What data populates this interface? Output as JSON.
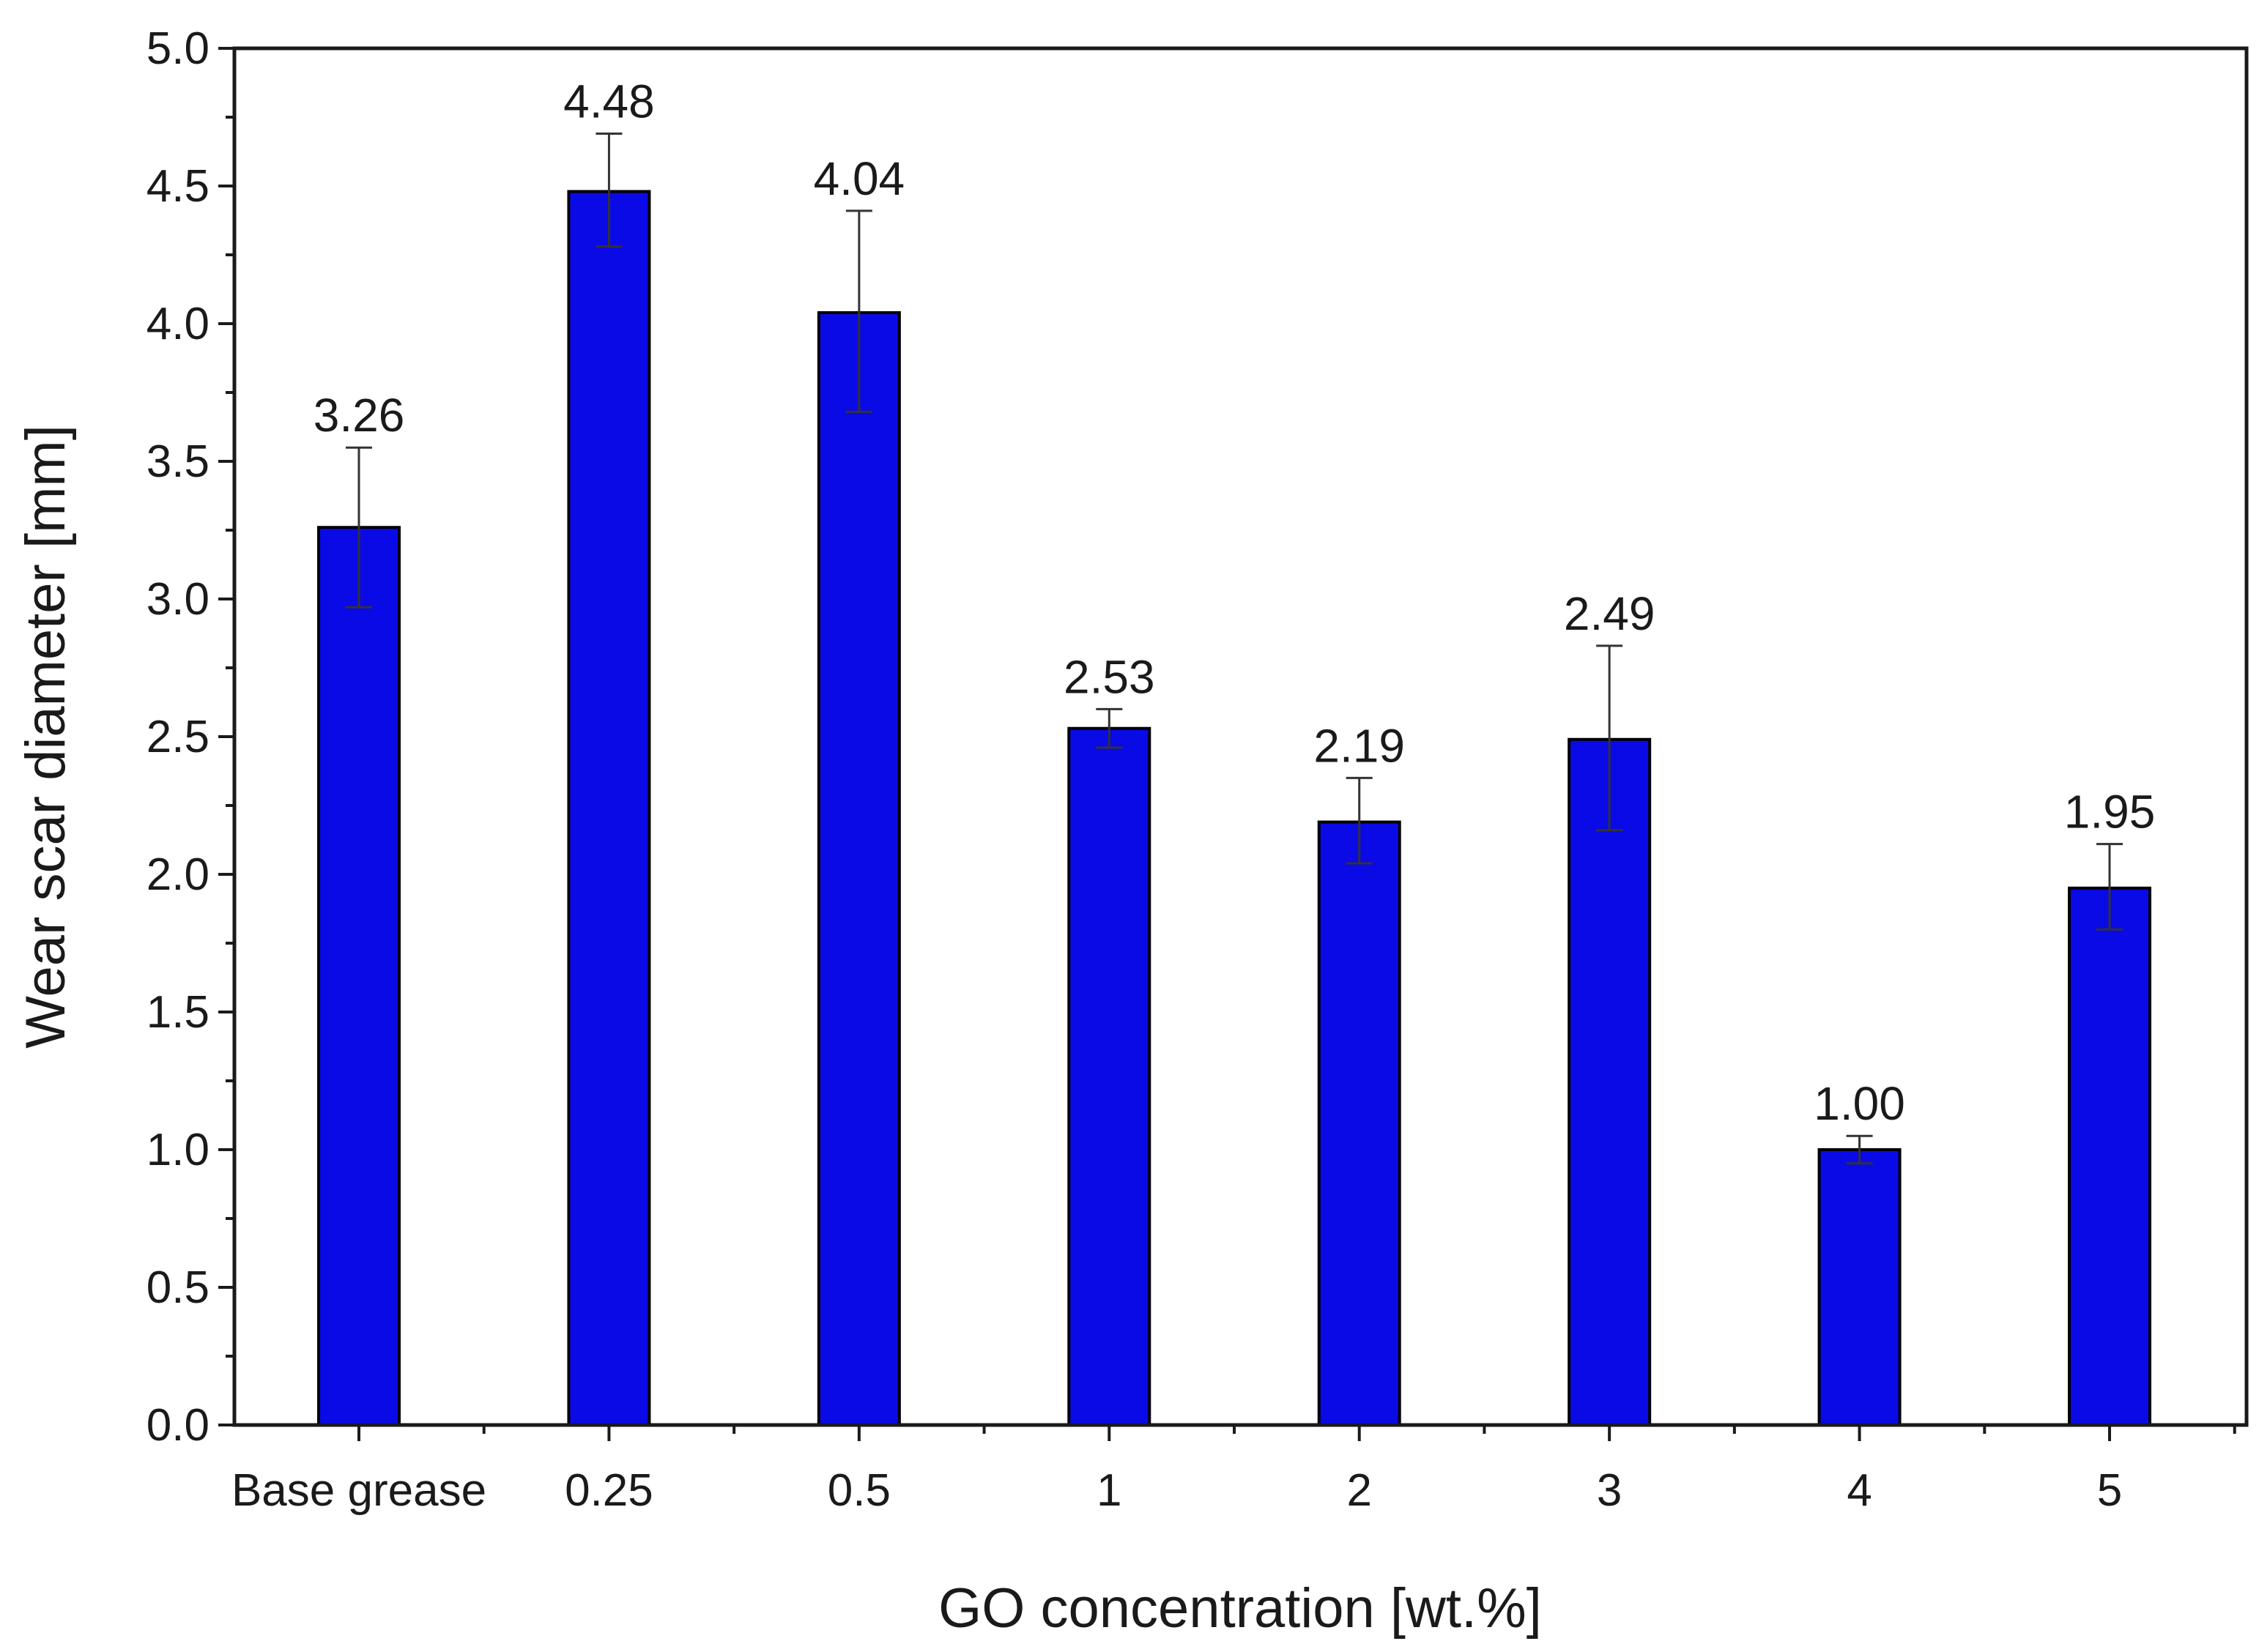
{
  "chart_data": {
    "type": "bar",
    "title": "",
    "xlabel": "GO concentration [wt.%]",
    "ylabel": "Wear scar diameter [mm]",
    "categories": [
      "Base grease",
      "0.25",
      "0.5",
      "1",
      "2",
      "3",
      "4",
      "5"
    ],
    "values": [
      3.26,
      4.48,
      4.04,
      2.53,
      2.19,
      2.49,
      1.0,
      1.95
    ],
    "value_labels": [
      "3.26",
      "4.48",
      "4.04",
      "2.53",
      "2.19",
      "2.49",
      "1.00",
      "1.95"
    ],
    "error_upper": [
      3.55,
      4.69,
      4.41,
      2.6,
      2.35,
      2.83,
      1.05,
      2.11
    ],
    "error_lower": [
      2.97,
      4.28,
      3.68,
      2.46,
      2.04,
      2.16,
      0.95,
      1.8
    ],
    "ylim": [
      0,
      5
    ],
    "yticks": [
      0,
      0.5,
      1,
      1.5,
      2,
      2.5,
      3,
      3.5,
      4,
      4.5,
      5
    ],
    "ytick_labels": [
      "0.0",
      "0.5",
      "1.0",
      "1.5",
      "2.0",
      "2.5",
      "3.0",
      "3.5",
      "4.0",
      "4.5",
      "5.0"
    ],
    "grid": false,
    "colors": {
      "bar_fill": "#0a0ae6",
      "bar_edge": "#000000",
      "axis": "#1a1a1a"
    }
  }
}
